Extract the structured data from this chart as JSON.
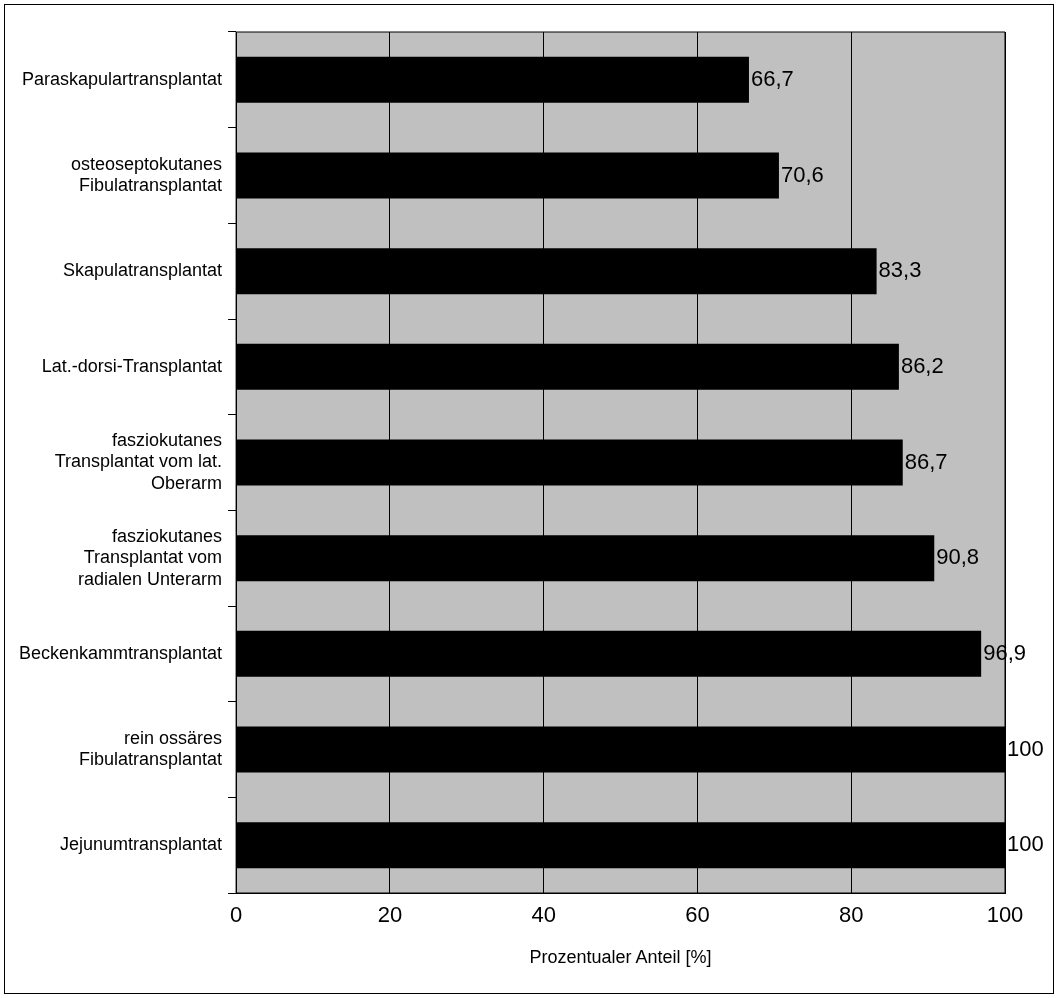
{
  "chart_data": {
    "type": "bar",
    "orientation": "horizontal",
    "categories": [
      "Paraskapulartransplantat",
      "osteoseptokutanes\nFibulatransplantat",
      "Skapulatransplantat",
      "Lat.-dorsi-Transplantat",
      "fasziokutanes\nTransplantat vom lat.\nOberarm",
      "fasziokutanes\nTransplantat vom\nradialen Unterarm",
      "Beckenkammtransplantat",
      "rein ossäres\nFibulatransplantat",
      "Jejunumtransplantat"
    ],
    "values": [
      66.7,
      70.6,
      83.3,
      86.2,
      86.7,
      90.8,
      96.9,
      100,
      100
    ],
    "value_labels": [
      "66,7",
      "70,6",
      "83,3",
      "86,2",
      "86,7",
      "90,8",
      "96,9",
      "100",
      "100"
    ],
    "color": "#000000",
    "xlabel": "Prozentualer Anteil [%]",
    "xlim": [
      0,
      100
    ],
    "xticks": [
      0,
      20,
      40,
      60,
      80,
      100
    ],
    "grid": "x",
    "legend": false
  }
}
